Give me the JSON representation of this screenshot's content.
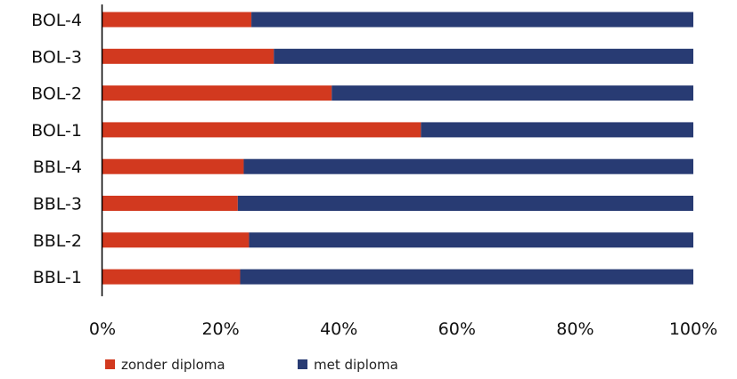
{
  "chart_data": {
    "type": "bar",
    "orientation": "horizontal",
    "stacked": "percent",
    "categories": [
      "BOL-4",
      "BOL-3",
      "BOL-2",
      "BOL-1",
      "BBL-4",
      "BBL-3",
      "BBL-2",
      "BBL-1"
    ],
    "series": [
      {
        "name": "zonder diploma",
        "color": "#d2391f",
        "values": [
          25.2,
          29.0,
          38.8,
          53.9,
          23.9,
          22.9,
          24.8,
          23.3
        ]
      },
      {
        "name": "met diploma",
        "color": "#283b73",
        "values": [
          74.8,
          71.0,
          61.2,
          46.1,
          76.1,
          77.1,
          75.2,
          76.7
        ]
      }
    ],
    "xlim": [
      0,
      100
    ],
    "xticks": [
      "0%",
      "20%",
      "40%",
      "60%",
      "80%",
      "100%"
    ],
    "grid": false,
    "legend_position": "bottom-left"
  }
}
